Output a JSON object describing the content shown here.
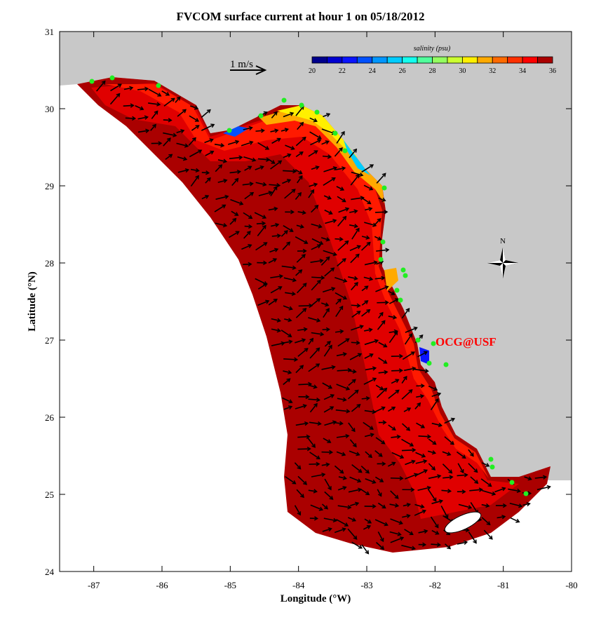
{
  "chart_data": {
    "type": "map",
    "title": "FVCOM surface current at hour 1 on 05/18/2012",
    "xlabel": "Longitude (°W)",
    "ylabel": "Latitude (°N)",
    "xlim": [
      -87.5,
      -80
    ],
    "ylim": [
      24,
      31
    ],
    "xticks": [
      "-87",
      "-86",
      "-85",
      "-84",
      "-83",
      "-82",
      "-81",
      "-80"
    ],
    "yticks": [
      "24",
      "25",
      "26",
      "27",
      "28",
      "29",
      "30",
      "31"
    ],
    "scale_arrow_label": "1 m/s",
    "colorbar": {
      "label": "salinity (psu)",
      "range": [
        20,
        36
      ],
      "tick_labels": [
        "20",
        "22",
        "24",
        "26",
        "28",
        "30",
        "32",
        "34",
        "36"
      ],
      "colors": [
        "#00008c",
        "#0000d0",
        "#0a14ff",
        "#0050ff",
        "#0096ff",
        "#00ccff",
        "#14ffee",
        "#50ff9c",
        "#94ff60",
        "#ccff30",
        "#fff000",
        "#ffaa00",
        "#ff6a00",
        "#ff3000",
        "#ff0000",
        "#aa0000"
      ]
    },
    "land_color": "#c8c8c8",
    "station_marker_color": "#22ee22",
    "annotation": "OCG@USF",
    "annotation_color": "#ff0000",
    "compass_label": "N"
  }
}
